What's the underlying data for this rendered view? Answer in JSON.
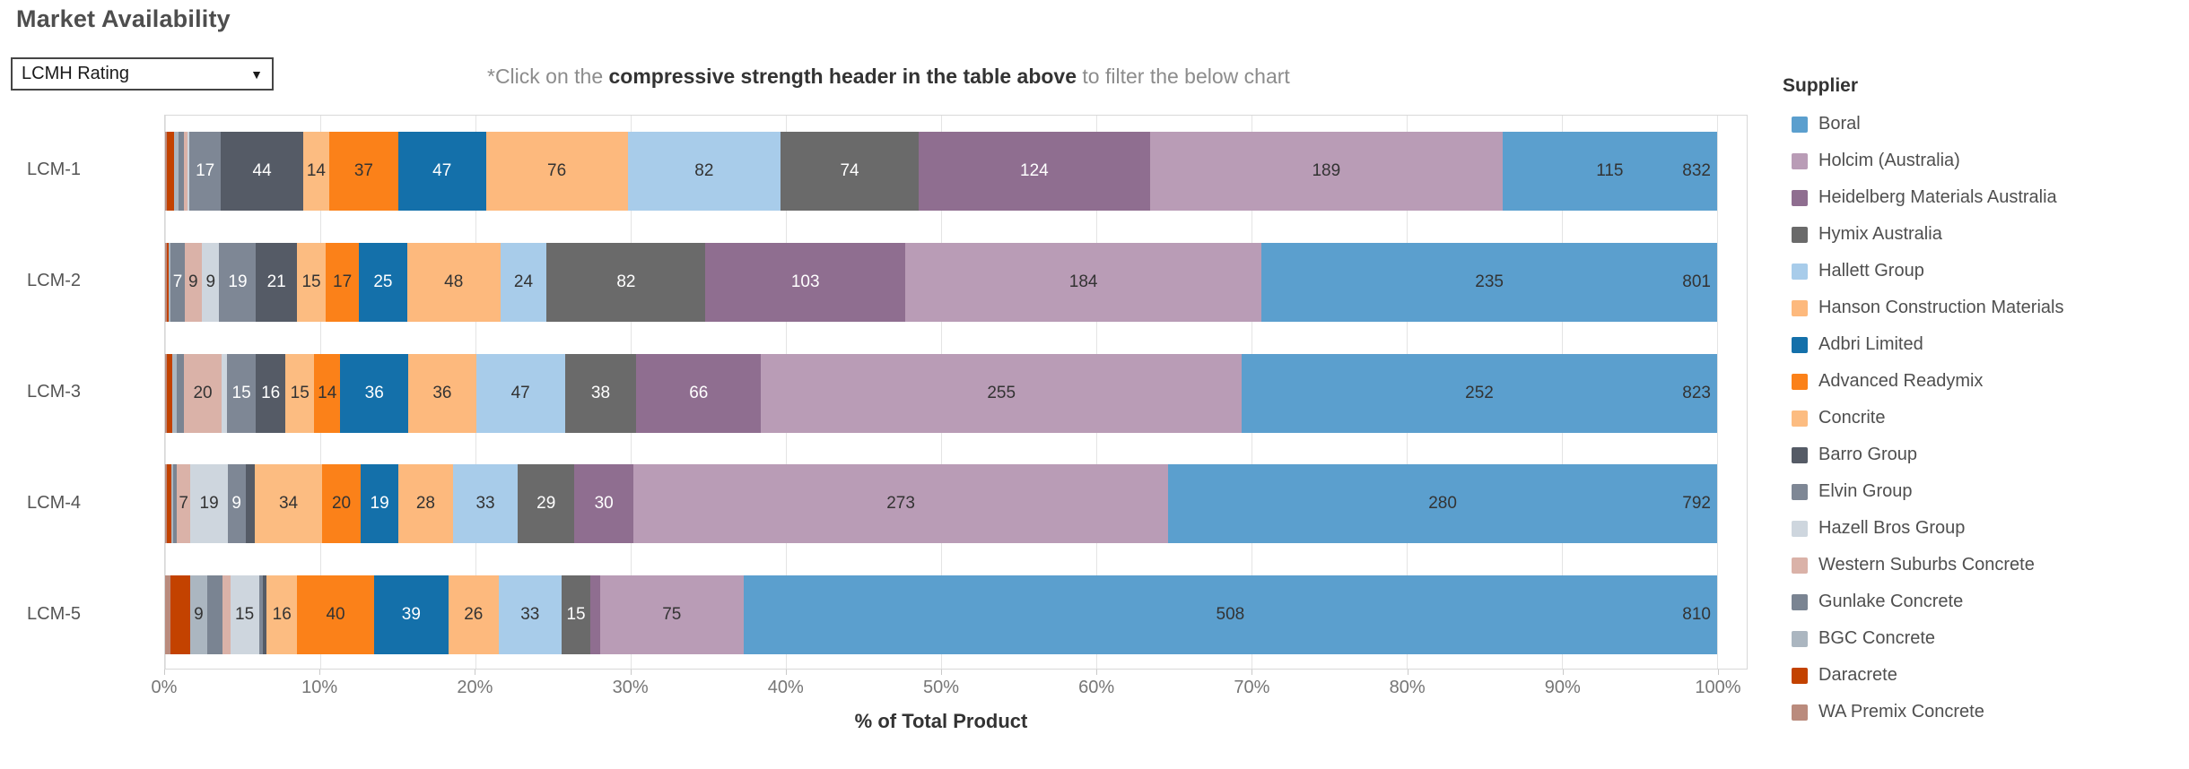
{
  "title": "Market Availability",
  "filter_dropdown": {
    "value": "LCMH Rating",
    "caret": "▼"
  },
  "note": {
    "prefix": "*Click on the ",
    "bold": "compressive strength header in the table above",
    "suffix": " to filter the below chart"
  },
  "legend": {
    "title": "Supplier",
    "items": [
      {
        "name": "Boral",
        "color": "#5B9FCE",
        "textured": false,
        "label_color": "#333333"
      },
      {
        "name": "Holcim (Australia)",
        "color": "#B99CB6",
        "textured": false,
        "label_color": "#333333"
      },
      {
        "name": "Heidelberg Materials Australia",
        "color": "#8F6E90",
        "textured": false,
        "label_color": "#ffffff"
      },
      {
        "name": "Hymix Australia",
        "color": "#6A6A6A",
        "textured": false,
        "label_color": "#ffffff"
      },
      {
        "name": "Hallett Group",
        "color": "#A8CCEA",
        "textured": false,
        "label_color": "#333333"
      },
      {
        "name": "Hanson Construction Materials",
        "color": "#FDB97D",
        "textured": false,
        "label_color": "#333333"
      },
      {
        "name": "Adbri Limited",
        "color": "#1470AA",
        "textured": false,
        "label_color": "#ffffff"
      },
      {
        "name": "Advanced Readymix",
        "color": "#FB8119",
        "textured": false,
        "label_color": "#333333"
      },
      {
        "name": "Concrite",
        "color": "#FCBC81",
        "textured": false,
        "label_color": "#333333"
      },
      {
        "name": "Barro Group",
        "color": "#555B66",
        "textured": false,
        "label_color": "#ffffff"
      },
      {
        "name": "Elvin Group",
        "color": "#7E8795",
        "textured": false,
        "label_color": "#ffffff"
      },
      {
        "name": "Hazell Bros Group",
        "color": "#CED6DE",
        "textured": true,
        "label_color": "#333333"
      },
      {
        "name": "Western Suburbs Concrete",
        "color": "#DAB2A8",
        "textured": false,
        "label_color": "#333333"
      },
      {
        "name": "Gunlake Concrete",
        "color": "#7A8492",
        "textured": false,
        "label_color": "#ffffff"
      },
      {
        "name": "BGC Concrete",
        "color": "#ABB6C0",
        "textured": true,
        "label_color": "#333333"
      },
      {
        "name": "Daracrete",
        "color": "#C34200",
        "textured": false,
        "label_color": "#ffffff"
      },
      {
        "name": "WA Premix Concrete",
        "color": "#BA8B7D",
        "textured": true,
        "label_color": "#333333"
      }
    ]
  },
  "chart_data": {
    "type": "bar",
    "subtype": "horizontal-stacked-100-percent",
    "title": "Market Availability",
    "xlabel": "% of Total Product",
    "x_ticks": [
      "0%",
      "10%",
      "20%",
      "30%",
      "40%",
      "50%",
      "60%",
      "70%",
      "80%",
      "90%",
      "100%"
    ],
    "grid": true,
    "legend_position": "right",
    "categories": [
      "LCM-1",
      "LCM-2",
      "LCM-3",
      "LCM-4",
      "LCM-5"
    ],
    "row_totals": [
      832,
      801,
      823,
      792,
      810
    ],
    "stack_order_left_to_right": [
      "WA Premix Concrete",
      "Daracrete",
      "BGC Concrete",
      "Gunlake Concrete",
      "Western Suburbs Concrete",
      "Hazell Bros Group",
      "Elvin Group",
      "Barro Group",
      "Concrite",
      "Advanced Readymix",
      "Adbri Limited",
      "Hanson Construction Materials",
      "Hallett Group",
      "Hymix Australia",
      "Heidelberg Materials Australia",
      "Holcim (Australia)",
      "Boral"
    ],
    "series": [
      {
        "name": "WA Premix Concrete",
        "values": [
          1,
          1,
          1,
          1,
          3
        ],
        "labeled": [
          false,
          false,
          false,
          false,
          false
        ]
      },
      {
        "name": "Daracrete",
        "values": [
          4,
          1,
          3,
          2,
          10
        ],
        "labeled": [
          false,
          false,
          false,
          false,
          false
        ]
      },
      {
        "name": "BGC Concrete",
        "values": [
          2,
          1,
          2,
          1,
          9
        ],
        "labeled": [
          false,
          false,
          false,
          false,
          true
        ]
      },
      {
        "name": "Gunlake Concrete",
        "values": [
          3,
          7,
          4,
          2,
          8
        ],
        "labeled": [
          false,
          true,
          false,
          false,
          false
        ]
      },
      {
        "name": "Western Suburbs Concrete",
        "values": [
          2,
          9,
          20,
          7,
          4
        ],
        "labeled": [
          false,
          true,
          true,
          true,
          false
        ]
      },
      {
        "name": "Hazell Bros Group",
        "values": [
          1,
          9,
          3,
          19,
          15
        ],
        "labeled": [
          false,
          true,
          false,
          true,
          true
        ]
      },
      {
        "name": "Elvin Group",
        "values": [
          17,
          19,
          15,
          9,
          2
        ],
        "labeled": [
          true,
          true,
          true,
          true,
          false
        ]
      },
      {
        "name": "Barro Group",
        "values": [
          44,
          21,
          16,
          5,
          2
        ],
        "labeled": [
          true,
          true,
          true,
          false,
          false
        ]
      },
      {
        "name": "Concrite",
        "values": [
          14,
          15,
          15,
          34,
          16
        ],
        "labeled": [
          true,
          true,
          true,
          true,
          true
        ]
      },
      {
        "name": "Advanced Readymix",
        "values": [
          37,
          17,
          14,
          20,
          40
        ],
        "labeled": [
          true,
          true,
          true,
          true,
          true
        ]
      },
      {
        "name": "Adbri Limited",
        "values": [
          47,
          25,
          36,
          19,
          39
        ],
        "labeled": [
          true,
          true,
          true,
          true,
          true
        ]
      },
      {
        "name": "Hanson Construction Materials",
        "values": [
          76,
          48,
          36,
          28,
          26
        ],
        "labeled": [
          true,
          true,
          true,
          true,
          true
        ]
      },
      {
        "name": "Hallett Group",
        "values": [
          82,
          24,
          47,
          33,
          33
        ],
        "labeled": [
          true,
          true,
          true,
          true,
          true
        ]
      },
      {
        "name": "Hymix Australia",
        "values": [
          74,
          82,
          38,
          29,
          15
        ],
        "labeled": [
          true,
          true,
          true,
          true,
          true
        ]
      },
      {
        "name": "Heidelberg Materials Australia",
        "values": [
          124,
          103,
          66,
          30,
          5
        ],
        "labeled": [
          true,
          true,
          true,
          true,
          false
        ]
      },
      {
        "name": "Holcim (Australia)",
        "values": [
          189,
          184,
          255,
          273,
          75
        ],
        "labeled": [
          true,
          true,
          true,
          true,
          true
        ]
      },
      {
        "name": "Boral",
        "values": [
          115,
          235,
          252,
          280,
          508
        ],
        "labeled": [
          true,
          true,
          true,
          true,
          true
        ]
      }
    ]
  }
}
